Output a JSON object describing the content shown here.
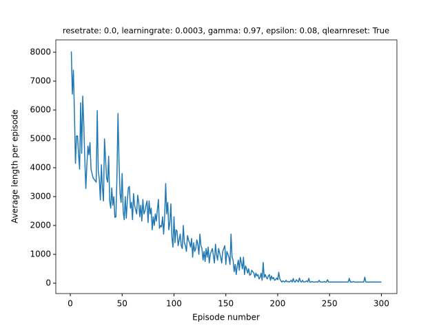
{
  "chart_data": {
    "type": "line",
    "title": "resetrate: 0.0, learningrate: 0.0003, gamma: 0.97, epsilon: 0.08, qlearnreset: True",
    "x_label": "Episode number",
    "y_label": "Average length per episode",
    "x": [
      1,
      2,
      3,
      4,
      5,
      6,
      7,
      8,
      9,
      10,
      11,
      12,
      13,
      14,
      15,
      16,
      17,
      18,
      19,
      20,
      21,
      22,
      23,
      24,
      25,
      26,
      27,
      28,
      29,
      30,
      31,
      32,
      33,
      34,
      35,
      36,
      37,
      38,
      39,
      40,
      41,
      42,
      43,
      44,
      45,
      46,
      47,
      48,
      49,
      50,
      51,
      52,
      53,
      54,
      55,
      56,
      57,
      58,
      59,
      60,
      61,
      62,
      63,
      64,
      65,
      66,
      67,
      68,
      69,
      70,
      71,
      72,
      73,
      74,
      75,
      76,
      77,
      78,
      79,
      80,
      81,
      82,
      83,
      84,
      85,
      86,
      87,
      88,
      89,
      90,
      91,
      92,
      93,
      94,
      95,
      96,
      97,
      98,
      99,
      100,
      101,
      102,
      103,
      104,
      105,
      106,
      107,
      108,
      109,
      110,
      111,
      112,
      113,
      114,
      115,
      116,
      117,
      118,
      119,
      120,
      121,
      122,
      123,
      124,
      125,
      126,
      127,
      128,
      129,
      130,
      131,
      132,
      133,
      134,
      135,
      136,
      137,
      138,
      139,
      140,
      141,
      142,
      143,
      144,
      145,
      146,
      147,
      148,
      149,
      150,
      151,
      152,
      153,
      154,
      155,
      156,
      157,
      158,
      159,
      160,
      161,
      162,
      163,
      164,
      165,
      166,
      167,
      168,
      169,
      170,
      171,
      172,
      173,
      174,
      175,
      176,
      177,
      178,
      179,
      180,
      181,
      182,
      183,
      184,
      185,
      186,
      187,
      188,
      189,
      190,
      191,
      192,
      193,
      194,
      195,
      196,
      197,
      198,
      199,
      200,
      201,
      202,
      203,
      204,
      205,
      206,
      207,
      208,
      209,
      210,
      211,
      212,
      213,
      214,
      215,
      216,
      217,
      218,
      219,
      220,
      221,
      222,
      223,
      224,
      225,
      226,
      227,
      228,
      229,
      230,
      231,
      232,
      233,
      234,
      235,
      236,
      237,
      238,
      239,
      240,
      241,
      242,
      243,
      244,
      245,
      246,
      247,
      248,
      249,
      250,
      251,
      252,
      253,
      254,
      255,
      256,
      257,
      258,
      259,
      260,
      261,
      262,
      263,
      264,
      265,
      266,
      267,
      268,
      269,
      270,
      271,
      272,
      273,
      274,
      275,
      276,
      277,
      278,
      279,
      280,
      281,
      282,
      283,
      284,
      285,
      286,
      287,
      288,
      289,
      290,
      291,
      292,
      293,
      294,
      295,
      296,
      297,
      298,
      299,
      300
    ],
    "series": [
      {
        "color": "#1f77b4",
        "values": [
          8030,
          6550,
          7380,
          5900,
          4150,
          5100,
          5100,
          4450,
          3950,
          6250,
          4500,
          6480,
          5500,
          4300,
          3280,
          4100,
          4750,
          4450,
          4870,
          3950,
          3800,
          3650,
          3600,
          3550,
          3500,
          5980,
          3900,
          3600,
          2880,
          4100,
          3300,
          2850,
          5000,
          4300,
          3650,
          3500,
          4400,
          2850,
          2600,
          3300,
          2700,
          3000,
          2280,
          2300,
          3700,
          5880,
          4200,
          3100,
          2800,
          3800,
          2500,
          2200,
          3000,
          2250,
          2850,
          3300,
          3350,
          2600,
          2800,
          2200,
          3100,
          2700,
          2550,
          2400,
          3050,
          2800,
          2300,
          2700,
          2150,
          2900,
          2400,
          2500,
          2700,
          2850,
          2100,
          2850,
          2400,
          2600,
          1850,
          2300,
          2000,
          2400,
          2150,
          2550,
          2900,
          1900,
          2000,
          1950,
          2300,
          1700,
          2300,
          3450,
          2400,
          2800,
          1850,
          2100,
          2750,
          1600,
          1250,
          2300,
          1400,
          1850,
          1800,
          1300,
          1500,
          1700,
          1300,
          1200,
          2000,
          1400,
          1300,
          1100,
          1650,
          1500,
          1400,
          1250,
          1550,
          900,
          1400,
          1100,
          1200,
          1500,
          1350,
          1000,
          1700,
          1300,
          1200,
          800,
          1100,
          750,
          1200,
          900,
          1250,
          700,
          1000,
          1100,
          1200,
          950,
          700,
          1350,
          1000,
          800,
          1200,
          1050,
          900,
          700,
          1100,
          1200,
          1300,
          650,
          1100,
          1000,
          900,
          650,
          1700,
          900,
          800,
          400,
          650,
          300,
          600,
          800,
          450,
          900,
          700,
          500,
          900,
          300,
          600,
          500,
          350,
          500,
          280,
          300,
          450,
          400,
          350,
          200,
          350,
          250,
          300,
          150,
          200,
          350,
          100,
          720,
          200,
          300,
          200,
          150,
          250,
          300,
          100,
          250,
          150,
          200,
          100,
          120,
          180,
          120,
          380,
          150,
          90,
          40,
          80,
          60,
          40,
          100,
          50,
          60,
          40,
          60,
          100,
          40,
          160,
          50,
          40,
          120,
          80,
          40,
          180,
          60,
          40,
          100,
          40,
          40,
          60,
          80,
          40,
          170,
          40,
          40,
          60,
          40,
          40,
          40,
          50,
          40,
          40,
          100,
          40,
          40,
          40,
          40,
          60,
          40,
          40,
          120,
          40,
          40,
          40,
          40,
          40,
          40,
          40,
          40,
          40,
          40,
          40,
          40,
          40,
          40,
          40,
          40,
          40,
          40,
          40,
          40,
          170,
          40,
          40,
          40,
          60,
          40,
          40,
          40,
          40,
          40,
          40,
          40,
          40,
          40,
          40,
          210,
          40,
          40,
          40,
          40,
          40,
          40,
          40,
          40,
          40,
          40,
          40,
          40,
          40,
          40,
          40,
          40
        ]
      }
    ],
    "xlim": [
      -13.95,
      314.95
    ],
    "ylim": [
      -359,
      8429
    ],
    "xticks": [
      0,
      50,
      100,
      150,
      200,
      250,
      300
    ],
    "yticks": [
      0,
      1000,
      2000,
      3000,
      4000,
      5000,
      6000,
      7000,
      8000
    ]
  }
}
